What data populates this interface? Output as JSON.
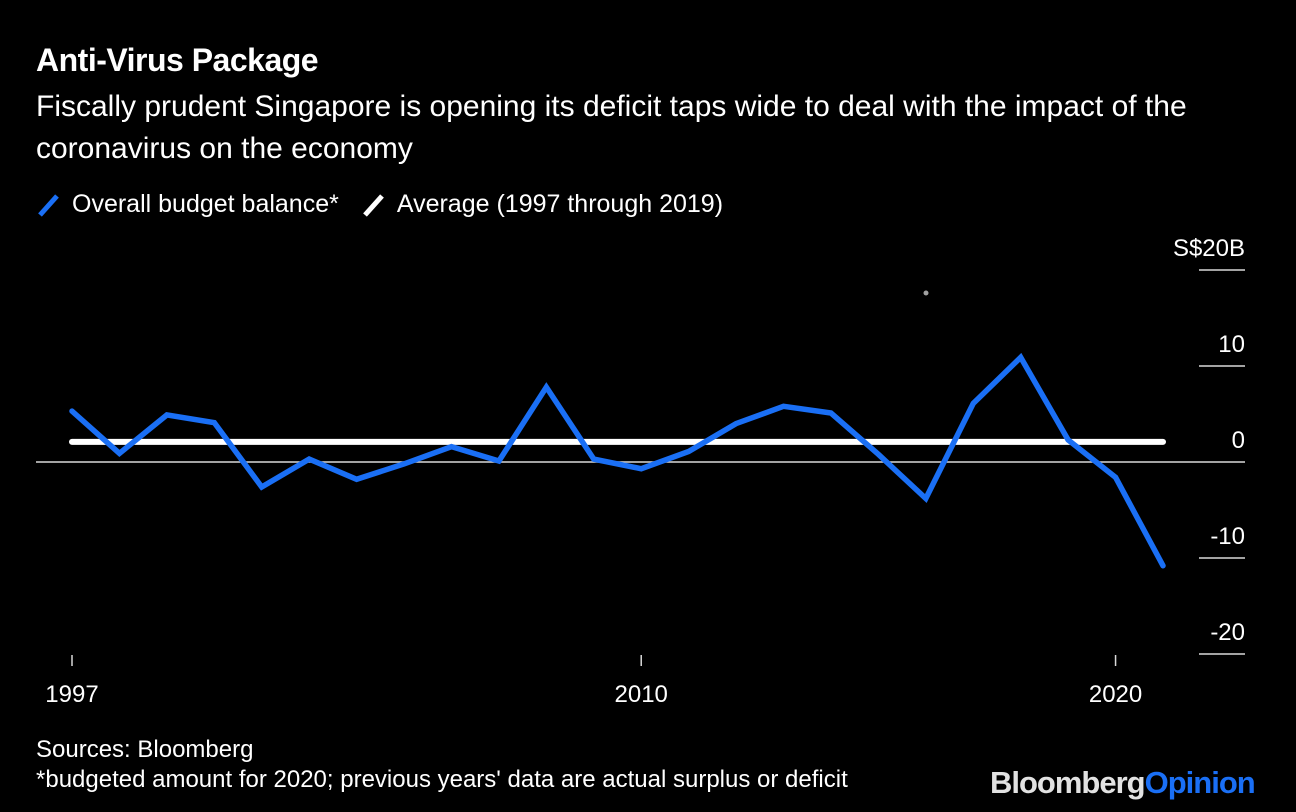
{
  "header": {
    "title": "Anti-Virus Package",
    "subtitle": "Fiscally prudent Singapore is opening its deficit taps wide to deal with the impact of the coronavirus on the economy"
  },
  "colors": {
    "background": "#000000",
    "series_blue": "#1a6ff5",
    "average_white": "#ffffff",
    "grid": "#d9d9d9",
    "brand_gray": "#e2e2e2"
  },
  "footer": {
    "sources": "Sources: Bloomberg",
    "note": "*budgeted amount for 2020; previous years' data are actual surplus or deficit",
    "brand_part1": "Bloomberg",
    "brand_part2": "Opinion"
  },
  "chart_data": {
    "type": "line",
    "title": "Anti-Virus Package",
    "subtitle": "Fiscally prudent Singapore is opening its deficit taps wide to deal with the impact of the coronavirus on the economy",
    "xlabel": "",
    "ylabel": "S$ billions",
    "y_unit_label": "S$20B",
    "ylim": [
      -20,
      20
    ],
    "yticks": [
      20,
      10,
      0,
      -10,
      -20
    ],
    "ytick_labels": [
      "S$20B",
      "10",
      "0",
      "-10",
      "-20"
    ],
    "xticks": [
      {
        "label": "1997",
        "year": 1997
      },
      {
        "label": "2010",
        "year": 2009
      },
      {
        "label": "2020",
        "year": 2019
      }
    ],
    "x": [
      1997,
      1998,
      1999,
      2000,
      2001,
      2002,
      2003,
      2004,
      2005,
      2006,
      2007,
      2008,
      2009,
      2010,
      2011,
      2012,
      2013,
      2014,
      2015,
      2016,
      2017,
      2018,
      2019,
      2020
    ],
    "series": [
      {
        "name": "Overall budget balance*",
        "color": "#1a6ff5",
        "values": [
          5.3,
          0.9,
          4.9,
          4.1,
          -2.6,
          0.3,
          -1.8,
          -0.2,
          1.6,
          0.1,
          7.8,
          0.3,
          -0.7,
          1.1,
          4.0,
          5.8,
          5.1,
          0.8,
          -3.8,
          6.1,
          10.9,
          2.3,
          -1.6,
          -10.8
        ]
      },
      {
        "name": "Average (1997 through 2019)",
        "color": "#ffffff",
        "values": [
          2.1,
          2.1
        ]
      }
    ],
    "legend": [
      "Overall budget balance*",
      "Average (1997 through 2019)"
    ],
    "legend_position": "top-left",
    "grid": true
  }
}
